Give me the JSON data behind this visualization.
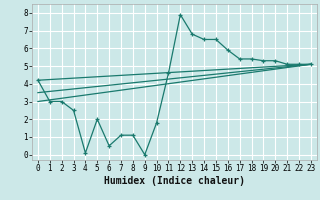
{
  "xlabel": "Humidex (Indice chaleur)",
  "bg_color": "#cce8e8",
  "grid_color": "#ffffff",
  "line_color": "#1a7a6e",
  "xlim": [
    -0.5,
    23.5
  ],
  "ylim": [
    -0.3,
    8.5
  ],
  "xticks": [
    0,
    1,
    2,
    3,
    4,
    5,
    6,
    7,
    8,
    9,
    10,
    11,
    12,
    13,
    14,
    15,
    16,
    17,
    18,
    19,
    20,
    21,
    22,
    23
  ],
  "yticks": [
    0,
    1,
    2,
    3,
    4,
    5,
    6,
    7,
    8
  ],
  "line1_x": [
    0,
    1,
    2,
    3,
    4,
    5,
    6,
    7,
    8,
    9,
    10,
    11,
    12,
    13,
    14,
    15,
    16,
    17,
    18,
    19,
    20,
    21,
    22,
    23
  ],
  "line1_y": [
    4.2,
    3.0,
    3.0,
    2.5,
    0.1,
    2.0,
    0.5,
    1.1,
    1.1,
    0.0,
    1.8,
    4.6,
    7.9,
    6.8,
    6.5,
    6.5,
    5.9,
    5.4,
    5.4,
    5.3,
    5.3,
    5.1,
    5.1,
    5.1
  ],
  "line2_x": [
    0,
    23
  ],
  "line2_y": [
    3.0,
    5.1
  ],
  "line3_x": [
    0,
    23
  ],
  "line3_y": [
    4.2,
    5.1
  ],
  "line4_x": [
    0,
    23
  ],
  "line4_y": [
    3.5,
    5.1
  ],
  "xlabel_fontsize": 7,
  "tick_fontsize": 5.5
}
